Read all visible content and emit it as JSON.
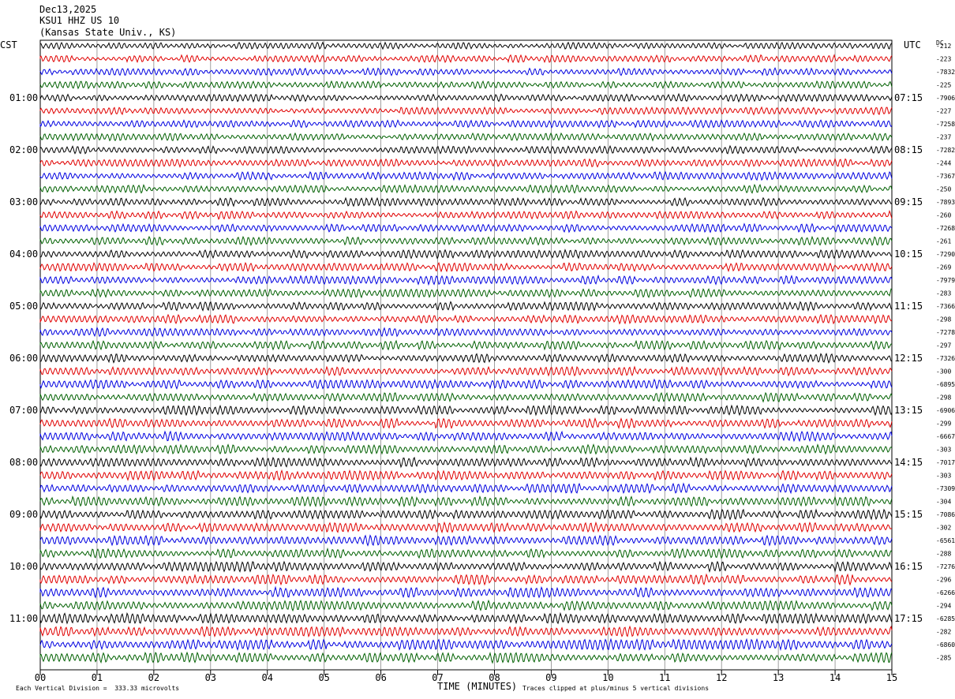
{
  "header": {
    "date": "Dec13,2025",
    "station": "KSU1 HHZ US 10",
    "location": "(Kansas State Univ., KS)"
  },
  "left_zone": "CST",
  "right_zone": "UTC",
  "dc_label": "DC",
  "footer": {
    "division": "Each Vertical Division =  333.33 microvolts",
    "xlabel": "TIME (MINUTES)",
    "clip_note": "Traces clipped at plus/minus 5 vertical divisions"
  },
  "chart_data": {
    "type": "line",
    "xlabel": "TIME (MINUTES)",
    "xlim": [
      0,
      15
    ],
    "x_ticks": [
      "00",
      "01",
      "02",
      "03",
      "04",
      "05",
      "06",
      "07",
      "08",
      "09",
      "10",
      "11",
      "12",
      "13",
      "14",
      "15"
    ],
    "left_hour_labels": [
      "01:00",
      "02:00",
      "03:00",
      "04:00",
      "05:00",
      "06:00",
      "07:00",
      "08:00",
      "09:00",
      "10:00",
      "11:00"
    ],
    "right_hour_labels": [
      "07:15",
      "08:15",
      "09:15",
      "10:15",
      "11:15",
      "12:15",
      "13:15",
      "14:15",
      "15:15",
      "16:15",
      "17:15"
    ],
    "trace_count": 48,
    "trace_colors": [
      "#000000",
      "#e00000",
      "#0000e0",
      "#006000"
    ],
    "dc_offsets": [
      "-212",
      "-223",
      "-7832",
      "-225",
      "-7906",
      "-227",
      "-7258",
      "-237",
      "-7282",
      "-244",
      "-7367",
      "-250",
      "-7893",
      "-260",
      "-7268",
      "-261",
      "-7290",
      "-269",
      "-7979",
      "-283",
      "-7366",
      "-298",
      "-7278",
      "-297",
      "-7326",
      "-300",
      "-6895",
      "-298",
      "-6906",
      "-299",
      "-6667",
      "-303",
      "-7017",
      "-303",
      "-7309",
      "-304",
      "-7086",
      "-302",
      "-6561",
      "-288",
      "-7276",
      "-296",
      "-6266",
      "-294",
      "-6285",
      "-282",
      "-6860",
      "-285"
    ]
  }
}
